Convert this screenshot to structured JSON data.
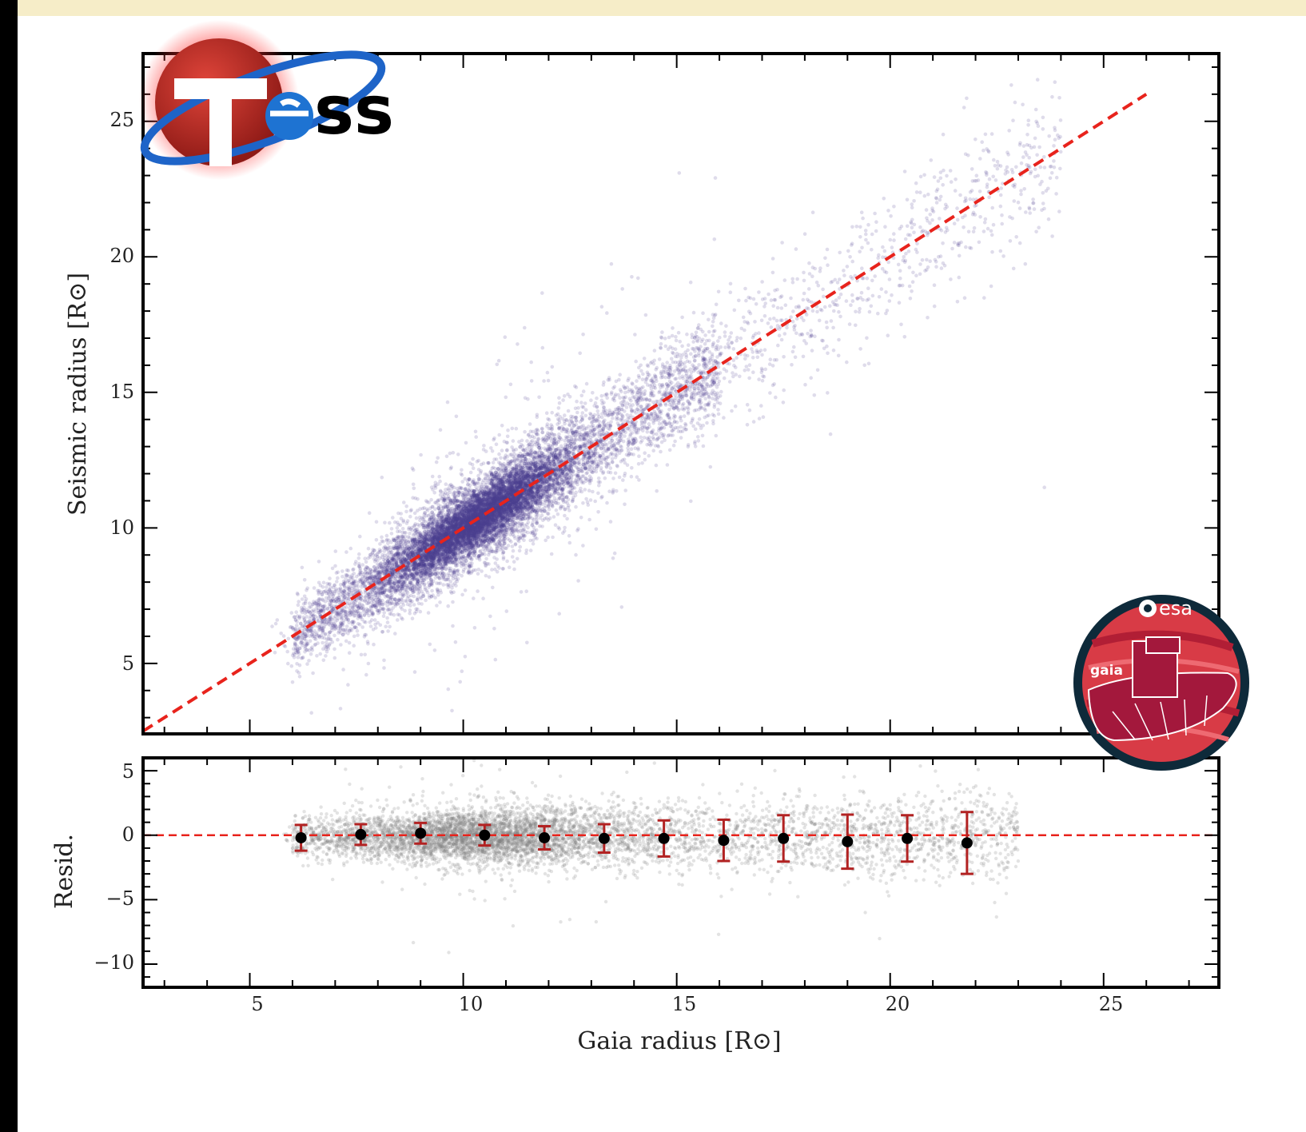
{
  "chart_data": [
    {
      "type": "scatter",
      "panel": "main",
      "title": "",
      "xlabel": "",
      "ylabel": "Seismic radius [R⊙]",
      "xlim": [
        2.5,
        27.7
      ],
      "ylim": [
        2.4,
        27.5
      ],
      "yticks": [
        "5",
        "10",
        "15",
        "20",
        "25"
      ],
      "grid": false,
      "series": [
        {
          "kind": "points",
          "color": "#4b3f8f",
          "approx_count": 9000,
          "description_of_values": "Seismic radius vs Gaia radius, tightly following 1:1 relation, densest core near x=9-12, spread grows with radius"
        },
        {
          "kind": "line",
          "style": "dashed",
          "color": "#e8231c",
          "x": [
            2.5,
            26.0
          ],
          "y": [
            2.5,
            26.0
          ]
        }
      ]
    },
    {
      "type": "scatter",
      "panel": "residual",
      "title": "",
      "xlabel": "Gaia radius [R⊙]",
      "ylabel": "Resid.",
      "xlim": [
        2.5,
        27.7
      ],
      "ylim": [
        -11.8,
        6.0
      ],
      "xticks": [
        "5",
        "10",
        "15",
        "20",
        "25"
      ],
      "yticks": [
        "5",
        "0",
        "−5",
        "−10"
      ],
      "grid": false,
      "series": [
        {
          "kind": "points",
          "color": "#808080",
          "approx_count": 6000
        },
        {
          "kind": "line",
          "style": "dashed",
          "color": "#e8231c",
          "y": 0
        },
        {
          "kind": "errorbar",
          "marker_color": "#000000",
          "bar_color": "#b22222",
          "x": [
            6.2,
            7.6,
            9.0,
            10.5,
            11.9,
            13.3,
            14.7,
            16.1,
            17.5,
            19.0,
            20.4,
            21.8
          ],
          "y": [
            -0.2,
            0.05,
            0.15,
            0.0,
            -0.2,
            -0.25,
            -0.25,
            -0.4,
            -0.25,
            -0.5,
            -0.25,
            -0.6
          ],
          "yerr": [
            1.0,
            0.8,
            0.8,
            0.8,
            0.9,
            1.1,
            1.4,
            1.6,
            1.8,
            2.1,
            1.8,
            2.4
          ]
        }
      ]
    }
  ],
  "logos": {
    "tess": {
      "text": "ss"
    },
    "esa": {
      "agency": "esa",
      "mission": "gaia"
    }
  },
  "colors": {
    "main_points": "#4b3f8f",
    "resid_points": "#808080",
    "fit_line": "#e8231c",
    "errorbar": "#b22222"
  }
}
